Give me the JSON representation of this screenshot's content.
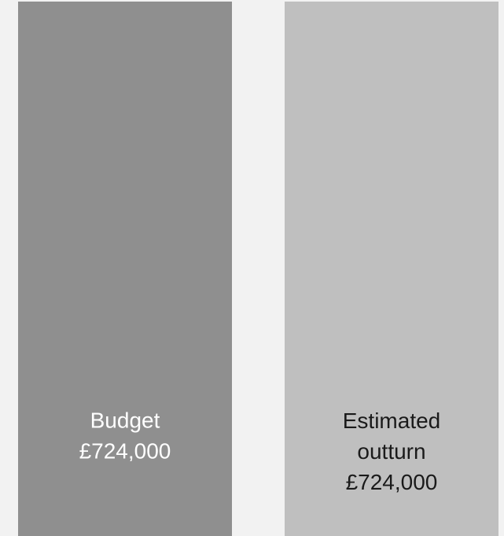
{
  "chart_data": {
    "type": "bar",
    "title": "",
    "xlabel": "",
    "ylabel": "",
    "grid": false,
    "legend": "none",
    "categories": [
      "Budget",
      "Estimated outturn"
    ],
    "values": [
      724000,
      724000
    ],
    "ylim": [
      0,
      724000
    ],
    "bar_colors": [
      "#8f8f8f",
      "#bfbfbf"
    ],
    "label_colors": [
      "#ffffff",
      "#1a1a1a"
    ],
    "bar_labels": [
      {
        "lines": [
          "Budget",
          "£724,000"
        ]
      },
      {
        "lines": [
          "Estimated",
          "outturn",
          "£724,000"
        ]
      }
    ]
  }
}
